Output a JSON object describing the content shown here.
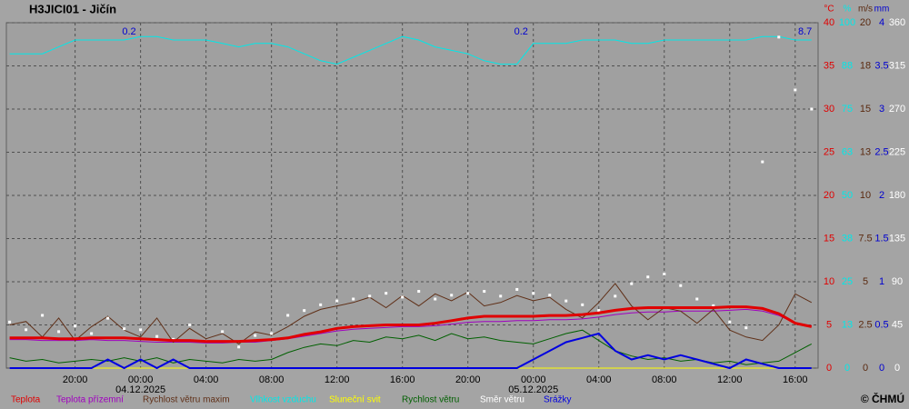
{
  "chart_data": {
    "type": "line",
    "title": "H3JICI01 - Jičín",
    "credit": "© ČHMÚ",
    "x": [
      -8,
      -7,
      -6,
      -5,
      -4,
      -3,
      -2,
      -1,
      0,
      1,
      2,
      3,
      4,
      5,
      6,
      7,
      8,
      9,
      10,
      11,
      12,
      13,
      14,
      15,
      16,
      17,
      18,
      19,
      20,
      21,
      22,
      23,
      24,
      25,
      26,
      27,
      28,
      29,
      30,
      31,
      32,
      33,
      34,
      35,
      36,
      37,
      38,
      39,
      40,
      41
    ],
    "xlim": [
      -8.2,
      41.4
    ],
    "xticks": [
      {
        "value": -4,
        "label": "20:00"
      },
      {
        "value": 0,
        "label": "00:00"
      },
      {
        "value": 4,
        "label": "04:00"
      },
      {
        "value": 8,
        "label": "08:00"
      },
      {
        "value": 12,
        "label": "12:00"
      },
      {
        "value": 16,
        "label": "16:00"
      },
      {
        "value": 20,
        "label": "20:00"
      },
      {
        "value": 24,
        "label": "00:00"
      },
      {
        "value": 28,
        "label": "04:00"
      },
      {
        "value": 32,
        "label": "08:00"
      },
      {
        "value": 36,
        "label": "12:00"
      },
      {
        "value": 40,
        "label": "16:00"
      }
    ],
    "date_labels": [
      {
        "value": 0,
        "label": "04.12.2025"
      },
      {
        "value": 24,
        "label": "05.12.2025"
      }
    ],
    "grid": true,
    "axes": [
      {
        "unit": "°C",
        "color": "#e00000",
        "lim": [
          0,
          40
        ],
        "ticks": [
          0,
          5,
          10,
          15,
          20,
          25,
          30,
          35,
          40
        ]
      },
      {
        "unit": "%",
        "color": "#00e8e8",
        "lim": [
          0,
          100
        ],
        "ticks": [
          0,
          {
            "value": 12.5,
            "label": "13"
          },
          25,
          {
            "value": 37.5,
            "label": "38"
          },
          50,
          {
            "value": 62.5,
            "label": "63"
          },
          75,
          {
            "value": 87.5,
            "label": "88"
          },
          100
        ]
      },
      {
        "unit": "m/s",
        "color": "#5a2a10",
        "lim": [
          0,
          20
        ],
        "ticks": [
          0,
          2.5,
          5,
          7.5,
          10,
          {
            "value": 12.5,
            "label": "13"
          },
          15,
          {
            "value": 17.5,
            "label": "18"
          },
          20
        ]
      },
      {
        "unit": "mm",
        "color": "#0000d0",
        "lim": [
          0,
          4
        ],
        "ticks": [
          0,
          0.5,
          1,
          1.5,
          2,
          2.5,
          3,
          3.5,
          4
        ]
      },
      {
        "color": "#ffffff",
        "lim": [
          0,
          360
        ],
        "ticks": [
          0,
          45,
          90,
          135,
          180,
          225,
          270,
          315,
          360
        ]
      }
    ],
    "series": [
      {
        "name": "Teplota přízemní",
        "color": "#a000c0",
        "axis": 0,
        "values": [
          3.3,
          3.3,
          3.2,
          3.2,
          3.2,
          3.3,
          3.2,
          3.2,
          3.1,
          3.0,
          3.0,
          3.0,
          2.9,
          2.9,
          3.0,
          3.0,
          3.2,
          3.4,
          3.7,
          4.0,
          4.3,
          4.5,
          4.6,
          4.7,
          4.8,
          4.8,
          4.9,
          5.1,
          5.3,
          5.4,
          5.4,
          5.5,
          5.5,
          5.6,
          5.6,
          5.7,
          5.9,
          6.2,
          6.4,
          6.5,
          6.5,
          6.6,
          6.6,
          6.6,
          6.7,
          6.8,
          6.6,
          6.1,
          5.2,
          4.9
        ]
      },
      {
        "name": "Rychlost větru maxim",
        "color": "#603018",
        "axis": 2,
        "values": [
          2.5,
          2.7,
          1.8,
          2.9,
          1.6,
          2.4,
          3.0,
          2.2,
          1.8,
          2.9,
          1.5,
          2.3,
          1.7,
          2.0,
          1.4,
          2.1,
          1.9,
          2.4,
          3.0,
          3.4,
          3.6,
          3.8,
          4.1,
          3.5,
          4.2,
          3.6,
          4.3,
          3.9,
          4.4,
          3.6,
          3.8,
          4.2,
          3.9,
          4.1,
          3.4,
          2.9,
          3.8,
          4.9,
          3.6,
          2.8,
          3.5,
          3.3,
          2.6,
          3.4,
          2.2,
          1.8,
          1.6,
          2.5,
          4.3,
          3.8
        ]
      },
      {
        "name": "Vlhkost vzduchu",
        "color": "#00e8e8",
        "axis": 1,
        "values": [
          91,
          91,
          91,
          93,
          95,
          95,
          95,
          95,
          96,
          96,
          95,
          95,
          95,
          94,
          93,
          94,
          94,
          93,
          91,
          89,
          88,
          90,
          92,
          94,
          96,
          95,
          93,
          92,
          91,
          89,
          88,
          88,
          94,
          94,
          94,
          95,
          95,
          95,
          94,
          94,
          95,
          95,
          95,
          95,
          95,
          95,
          96,
          96,
          95,
          95
        ]
      },
      {
        "name": "Sluneční svit",
        "color": "#ffff00",
        "axis": 3,
        "values": [
          0,
          0,
          0,
          0,
          0,
          0,
          0,
          0,
          0,
          0,
          0,
          0,
          0,
          0,
          0,
          0,
          0,
          0,
          0,
          0,
          0,
          0,
          0,
          0,
          0,
          0,
          0,
          0,
          0,
          0,
          0,
          0,
          0,
          0,
          0,
          0,
          0,
          0,
          0,
          0,
          0,
          0,
          0,
          0,
          0,
          0,
          0,
          0,
          0,
          0
        ]
      },
      {
        "name": "Rychlost větru",
        "color": "#006000",
        "axis": 2,
        "values": [
          0.6,
          0.4,
          0.5,
          0.3,
          0.4,
          0.5,
          0.4,
          0.6,
          0.4,
          0.6,
          0.3,
          0.5,
          0.4,
          0.3,
          0.5,
          0.4,
          0.5,
          0.9,
          1.2,
          1.4,
          1.3,
          1.6,
          1.5,
          1.8,
          1.7,
          1.9,
          1.6,
          2.0,
          1.7,
          1.8,
          1.6,
          1.5,
          1.4,
          1.7,
          2.0,
          2.2,
          1.6,
          1.0,
          0.7,
          0.5,
          0.6,
          0.4,
          0.5,
          0.3,
          0.4,
          0.2,
          0.3,
          0.4,
          0.9,
          1.4
        ]
      },
      {
        "name": "Směr  větru",
        "color": "#ffffff",
        "axis": 4,
        "style": "dots",
        "values": [
          48,
          40,
          55,
          38,
          44,
          36,
          52,
          41,
          40,
          33,
          30,
          45,
          28,
          38,
          22,
          34,
          36,
          55,
          60,
          66,
          70,
          72,
          75,
          78,
          74,
          80,
          72,
          76,
          78,
          80,
          75,
          82,
          78,
          76,
          70,
          66,
          60,
          75,
          88,
          95,
          98,
          86,
          72,
          65,
          48,
          42,
          215,
          345,
          290,
          270
        ]
      },
      {
        "name": "Srážky",
        "color": "#0000e0",
        "axis": 3,
        "width": 2,
        "values": [
          0,
          0,
          0,
          0,
          0,
          0,
          0.1,
          0,
          0.1,
          0,
          0.1,
          0,
          0,
          0,
          0,
          0,
          0,
          0,
          0,
          0,
          0,
          0,
          0,
          0,
          0,
          0,
          0,
          0,
          0,
          0,
          0,
          0,
          0.1,
          0.2,
          0.3,
          0.35,
          0.4,
          0.2,
          0.1,
          0.15,
          0.1,
          0.15,
          0.1,
          0.05,
          0,
          0.1,
          0.05,
          0,
          0,
          0
        ]
      },
      {
        "name": "Teplota",
        "color": "#e00000",
        "axis": 0,
        "width": 3,
        "values": [
          3.5,
          3.5,
          3.5,
          3.4,
          3.4,
          3.5,
          3.5,
          3.5,
          3.4,
          3.3,
          3.2,
          3.2,
          3.1,
          3.1,
          3.1,
          3.2,
          3.3,
          3.5,
          3.9,
          4.2,
          4.6,
          4.8,
          4.9,
          5.0,
          5.0,
          5.0,
          5.2,
          5.5,
          5.8,
          6.0,
          6.0,
          6.0,
          6.0,
          6.1,
          6.1,
          6.2,
          6.4,
          6.7,
          6.9,
          7.0,
          7.0,
          7.0,
          7.0,
          7.0,
          7.1,
          7.1,
          6.9,
          6.3,
          5.2,
          4.8
        ]
      }
    ],
    "legend_order": [
      7,
      0,
      1,
      2,
      3,
      4,
      5,
      6
    ],
    "annotations": [
      {
        "x": -0.7,
        "label": "0.2"
      },
      {
        "x": 23.25,
        "label": "0.2"
      },
      {
        "x": 40.6,
        "label": "8.7"
      }
    ]
  }
}
